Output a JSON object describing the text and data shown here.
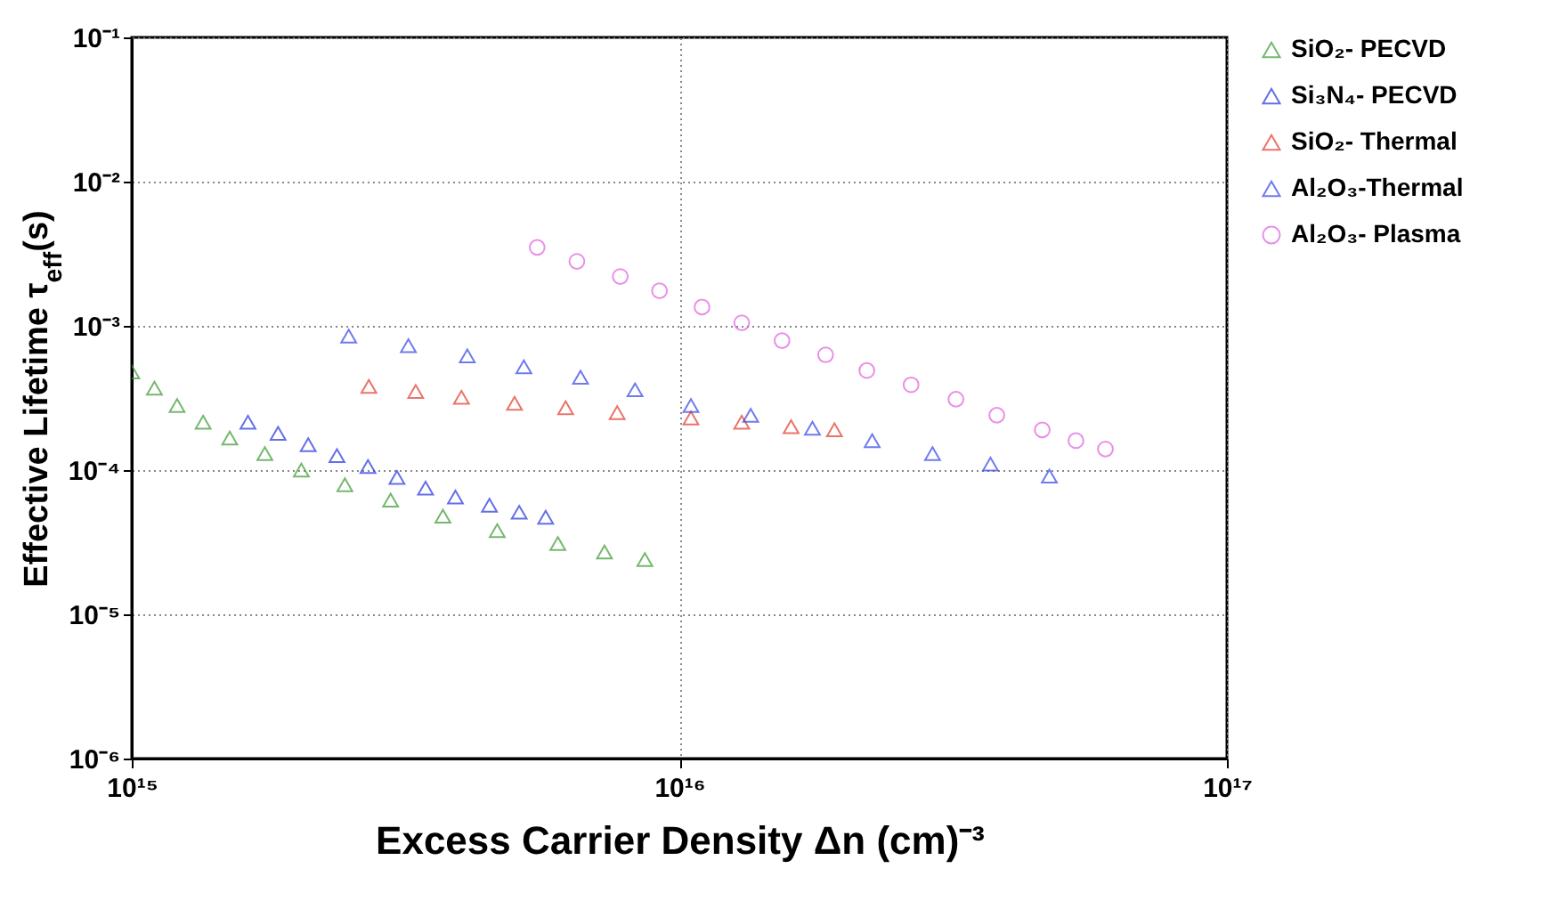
{
  "chart_data": {
    "type": "scatter",
    "xlabel": "Excess Carrier Density Δn (cm)⁻³",
    "ylabel": "Effective Lifetime τ$_{eff}$(s)",
    "log": "xy",
    "grid": true,
    "legend": "right",
    "xlim": [
      1000000000000000.0,
      1e+17
    ],
    "xticks": [
      {
        "value": 1000000000000000.0,
        "label": "10¹⁵"
      },
      {
        "value": 1e+16,
        "label": "10¹⁶"
      },
      {
        "value": 1e+17,
        "label": "10¹⁷"
      }
    ],
    "ylim": [
      1e-06,
      0.1
    ],
    "yticks": [
      {
        "value": 1e-06,
        "label": "10⁻⁶"
      },
      {
        "value": 1e-05,
        "label": "10⁻⁵"
      },
      {
        "value": 0.0001,
        "label": "10⁻⁴"
      },
      {
        "value": 0.001,
        "label": "10⁻³"
      },
      {
        "value": 0.01,
        "label": "10⁻²"
      },
      {
        "value": 0.1,
        "label": "10⁻¹"
      }
    ],
    "series": [
      {
        "name": "SiO₂- PECVD",
        "color": "#3c9a32",
        "marker": "triangle",
        "x": [
          1000000000000000.0,
          1100000000000000.0,
          1210000000000000.0,
          1350000000000000.0,
          1510000000000000.0,
          1750000000000000.0,
          2040000000000000.0,
          2450000000000000.0,
          2970000000000000.0,
          3700000000000000.0,
          4650000000000000.0,
          6000000000000000.0,
          7300000000000000.0,
          8650000000000000.0
        ],
        "values": [
          0.00048,
          0.00037,
          0.00028,
          0.000215,
          0.000167,
          0.00013,
          0.0001,
          7.9e-05,
          6.2e-05,
          4.8e-05,
          3.8e-05,
          3.1e-05,
          2.7e-05,
          2.4e-05
        ]
      },
      {
        "name": "Si₃N₄- PECVD",
        "color": "#2233dd",
        "marker": "triangle",
        "x": [
          1630000000000000.0,
          1850000000000000.0,
          2100000000000000.0,
          2370000000000000.0,
          2700000000000000.0,
          3050000000000000.0,
          3440000000000000.0,
          3900000000000000.0,
          4500000000000000.0,
          5100000000000000.0,
          5700000000000000.0
        ],
        "values": [
          0.000215,
          0.00018,
          0.00015,
          0.000126,
          0.000106,
          8.9e-05,
          7.5e-05,
          6.5e-05,
          5.7e-05,
          5.1e-05,
          4.7e-05
        ]
      },
      {
        "name": "SiO₂- Thermal",
        "color": "#e03a2a",
        "marker": "triangle",
        "x": [
          2710000000000000.0,
          3300000000000000.0,
          4000000000000000.0,
          5000000000000000.0,
          6200000000000000.0,
          7700000000000000.0,
          1.05e+16,
          1.3e+16,
          1.6e+16,
          1.92e+16
        ],
        "values": [
          0.00038,
          0.00035,
          0.00032,
          0.00029,
          0.00027,
          0.00025,
          0.00023,
          0.000215,
          0.0002,
          0.00019
        ]
      },
      {
        "name": "Al₂O₃-Thermal",
        "color": "#3344e6",
        "marker": "triangle",
        "x": [
          2490000000000000.0,
          3200000000000000.0,
          4100000000000000.0,
          5200000000000000.0,
          6600000000000000.0,
          8300000000000000.0,
          1.05e+16,
          1.35e+16,
          1.75e+16,
          2.25e+16,
          2.9e+16,
          3.7e+16,
          4.74e+16
        ],
        "values": [
          0.00085,
          0.00073,
          0.00062,
          0.00052,
          0.00044,
          0.00036,
          0.00028,
          0.00024,
          0.000195,
          0.00016,
          0.00013,
          0.00011,
          9.1e-05
        ]
      },
      {
        "name": "Al₂O₃- Plasma",
        "color": "#e060e0",
        "marker": "circle",
        "x": [
          5500000000000000.0,
          6500000000000000.0,
          7800000000000000.0,
          9200000000000000.0,
          1.1e+16,
          1.3e+16,
          1.54e+16,
          1.85e+16,
          2.2e+16,
          2.65e+16,
          3.2e+16,
          3.8e+16,
          4.6e+16,
          5.3e+16,
          6e+16
        ],
        "values": [
          0.0035,
          0.0028,
          0.0022,
          0.00175,
          0.00135,
          0.00105,
          0.00079,
          0.00063,
          0.00049,
          0.00039,
          0.00031,
          0.00024,
          0.00019,
          0.00016,
          0.00014
        ]
      }
    ]
  }
}
